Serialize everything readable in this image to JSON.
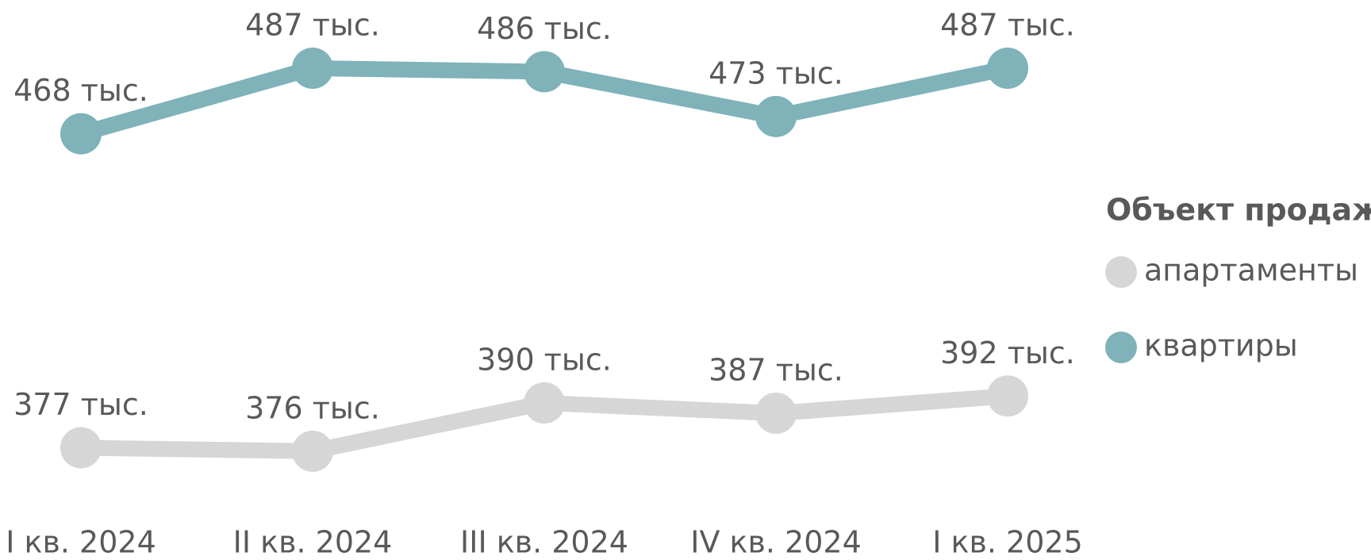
{
  "chart_data": {
    "type": "line",
    "categories": [
      "I кв. 2024",
      "II кв. 2024",
      "III кв. 2024",
      "IV кв. 2024",
      "I кв. 2025"
    ],
    "legend_title": "Объект продаж",
    "legend_position": "right",
    "series": [
      {
        "name": "апартаменты",
        "color": "#d6d6d6",
        "values": [
          377,
          376,
          390,
          387,
          392
        ],
        "value_labels": [
          "377 тыс.",
          "376 тыс.",
          "390 тыс.",
          "387 тыс.",
          "392 тыс."
        ]
      },
      {
        "name": "квартиры",
        "color": "#7fb2b9",
        "values": [
          468,
          487,
          486,
          473,
          487
        ],
        "value_labels": [
          "468 тыс.",
          "487 тыс.",
          "486 тыс.",
          "473 тыс.",
          "487 тыс."
        ]
      }
    ]
  }
}
